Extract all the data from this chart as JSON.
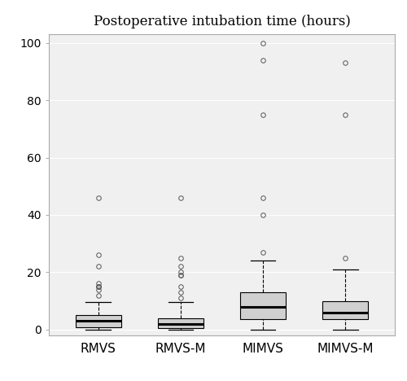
{
  "title": "Postoperative intubation time (hours)",
  "categories": [
    "RMVS",
    "RMVS-M",
    "MIMVS",
    "MIMVS-M"
  ],
  "boxes": [
    {
      "label": "RMVS",
      "q1": 0.8,
      "median": 3.0,
      "q3": 5.0,
      "whisker_low": 0.0,
      "whisker_high": 9.5,
      "outliers": [
        12,
        14,
        15,
        15,
        15,
        16,
        22,
        26,
        46
      ]
    },
    {
      "label": "RMVS-M",
      "q1": 0.5,
      "median": 2.0,
      "q3": 4.0,
      "whisker_low": 0.0,
      "whisker_high": 9.5,
      "outliers": [
        11,
        13,
        15,
        19,
        19,
        20,
        22,
        25,
        46
      ]
    },
    {
      "label": "MIMVS",
      "q1": 3.5,
      "median": 8.0,
      "q3": 13.0,
      "whisker_low": 0.0,
      "whisker_high": 24.0,
      "outliers": [
        27,
        40,
        46,
        75,
        94,
        100
      ]
    },
    {
      "label": "MIMVS-M",
      "q1": 3.5,
      "median": 6.0,
      "q3": 10.0,
      "whisker_low": 0.0,
      "whisker_high": 21.0,
      "outliers": [
        25,
        75,
        93
      ]
    }
  ],
  "ylim": [
    -2,
    103
  ],
  "yticks": [
    0,
    20,
    40,
    60,
    80,
    100
  ],
  "box_color": "#d0d0d0",
  "box_edge_color": "#000000",
  "median_color": "#000000",
  "whisker_color": "#000000",
  "outlier_marker": "o",
  "outlier_facecolor": "none",
  "outlier_edge_color": "#555555",
  "outlier_size": 4,
  "box_width": 0.55,
  "background_color": "#ffffff",
  "plot_bg_color": "#f0f0f0",
  "title_fontsize": 12,
  "tick_fontsize": 10,
  "label_fontsize": 11,
  "spine_color": "#aaaaaa",
  "positions": [
    1,
    2,
    3,
    4
  ],
  "xlim": [
    0.4,
    4.6
  ]
}
